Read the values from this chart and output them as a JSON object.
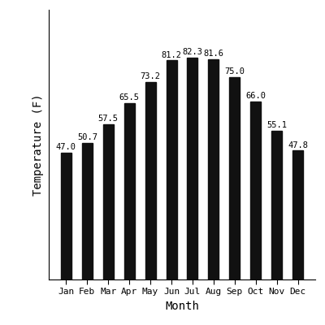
{
  "months": [
    "Jan",
    "Feb",
    "Mar",
    "Apr",
    "May",
    "Jun",
    "Jul",
    "Aug",
    "Sep",
    "Oct",
    "Nov",
    "Dec"
  ],
  "temperatures": [
    47.0,
    50.7,
    57.5,
    65.5,
    73.2,
    81.2,
    82.3,
    81.6,
    75.0,
    66.0,
    55.1,
    47.8
  ],
  "bar_color": "#111111",
  "xlabel": "Month",
  "ylabel": "Temperature (F)",
  "ylim": [
    0,
    100
  ],
  "bar_width": 0.5,
  "font_family": "monospace",
  "axis_label_fontsize": 10,
  "tick_fontsize": 8,
  "annotation_fontsize": 7.5
}
